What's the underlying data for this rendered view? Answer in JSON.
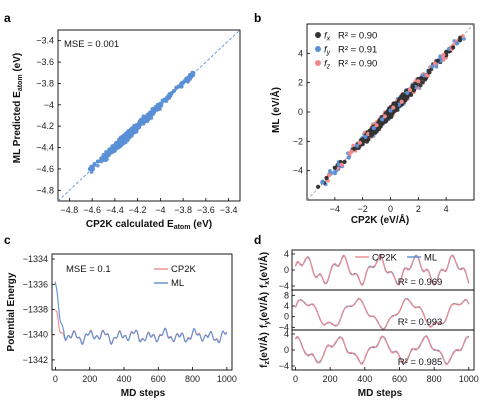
{
  "figure": {
    "panel_labels": [
      "a",
      "b",
      "c",
      "d"
    ]
  },
  "chart_data": [
    {
      "panel": "a",
      "type": "scatter",
      "xlabel_main": "CP2K calculated E",
      "xlabel_sub": "atom",
      "xlabel_unit": " (eV)",
      "ylabel_main": "ML Predicted E",
      "ylabel_sub": "atom",
      "ylabel_unit": " (eV)",
      "xlim": [
        -4.9,
        -3.3
      ],
      "ylim": [
        -4.9,
        -3.3
      ],
      "xticks": [
        -4.8,
        -4.6,
        -4.4,
        -4.2,
        -4.0,
        -3.8,
        -3.6,
        -3.4
      ],
      "yticks": [
        -4.8,
        -4.6,
        -4.4,
        -4.2,
        -4.0,
        -3.8,
        -3.6,
        -3.4
      ],
      "annotation": "MSE = 0.001",
      "reference_line": "y = x (dashed)",
      "series": [
        {
          "color": "#5b8fd6",
          "points": [
            [
              -4.62,
              -4.6
            ],
            [
              -4.58,
              -4.56
            ],
            [
              -4.55,
              -4.53
            ],
            [
              -4.52,
              -4.5
            ],
            [
              -4.5,
              -4.47
            ],
            [
              -4.48,
              -4.49
            ],
            [
              -4.46,
              -4.45
            ],
            [
              -4.45,
              -4.42
            ],
            [
              -4.43,
              -4.41
            ],
            [
              -4.42,
              -4.44
            ],
            [
              -4.41,
              -4.39
            ],
            [
              -4.4,
              -4.38
            ],
            [
              -4.39,
              -4.4
            ],
            [
              -4.38,
              -4.36
            ],
            [
              -4.37,
              -4.37
            ],
            [
              -4.36,
              -4.34
            ],
            [
              -4.35,
              -4.36
            ],
            [
              -4.34,
              -4.33
            ],
            [
              -4.33,
              -4.31
            ],
            [
              -4.32,
              -4.33
            ],
            [
              -4.31,
              -4.3
            ],
            [
              -4.3,
              -4.28
            ],
            [
              -4.29,
              -4.3
            ],
            [
              -4.28,
              -4.27
            ],
            [
              -4.27,
              -4.25
            ],
            [
              -4.26,
              -4.27
            ],
            [
              -4.25,
              -4.24
            ],
            [
              -4.24,
              -4.22
            ],
            [
              -4.23,
              -4.24
            ],
            [
              -4.22,
              -4.21
            ],
            [
              -4.21,
              -4.19
            ],
            [
              -4.2,
              -4.21
            ],
            [
              -4.19,
              -4.18
            ],
            [
              -4.18,
              -4.16
            ],
            [
              -4.17,
              -4.18
            ],
            [
              -4.16,
              -4.15
            ],
            [
              -4.15,
              -4.13
            ],
            [
              -4.14,
              -4.15
            ],
            [
              -4.12,
              -4.11
            ],
            [
              -4.1,
              -4.09
            ],
            [
              -4.08,
              -4.07
            ],
            [
              -4.06,
              -4.05
            ],
            [
              -4.04,
              -4.02
            ],
            [
              -4.02,
              -4.01
            ],
            [
              -4.0,
              -3.99
            ],
            [
              -3.98,
              -3.96
            ],
            [
              -3.96,
              -3.95
            ],
            [
              -3.94,
              -3.93
            ],
            [
              -3.92,
              -3.9
            ],
            [
              -3.9,
              -3.89
            ],
            [
              -3.88,
              -3.87
            ],
            [
              -3.86,
              -3.84
            ],
            [
              -3.84,
              -3.83
            ],
            [
              -3.82,
              -3.81
            ],
            [
              -3.8,
              -3.79
            ],
            [
              -3.78,
              -3.77
            ],
            [
              -3.76,
              -3.75
            ],
            [
              -3.74,
              -3.72
            ],
            [
              -3.72,
              -3.71
            ]
          ]
        }
      ]
    },
    {
      "panel": "b",
      "type": "scatter",
      "xlabel": "CP2K (eV/Å)",
      "ylabel": "ML (eV/Å)",
      "xlim": [
        -6,
        6
      ],
      "ylim": [
        -6,
        6
      ],
      "xticks": [
        -4,
        -2,
        0,
        2,
        4
      ],
      "yticks": [
        -4,
        -2,
        0,
        2,
        4
      ],
      "reference_line": "y = x (dashed)",
      "series": [
        {
          "legend_symbol": "f",
          "legend_sub": "x",
          "r2_text": "R² = 0.90",
          "color": "#333333",
          "points": [
            [
              -5.2,
              -5.1
            ],
            [
              -4.6,
              -4.5
            ],
            [
              -4.0,
              -3.8
            ],
            [
              -3.3,
              -3.4
            ],
            [
              -2.6,
              -2.5
            ],
            [
              -2.0,
              -1.9
            ],
            [
              -1.4,
              -1.5
            ],
            [
              -0.8,
              -0.7
            ],
            [
              -0.2,
              -0.1
            ],
            [
              0.4,
              0.5
            ],
            [
              1.0,
              0.9
            ],
            [
              1.6,
              1.7
            ],
            [
              2.2,
              2.3
            ],
            [
              2.8,
              2.7
            ],
            [
              3.4,
              3.5
            ],
            [
              4.0,
              4.1
            ],
            [
              4.5,
              4.4
            ],
            [
              5.0,
              4.9
            ]
          ]
        },
        {
          "legend_symbol": "f",
          "legend_sub": "y",
          "r2_text": "R² = 0.91",
          "color": "#5b8fd6",
          "points": [
            [
              -4.9,
              -4.8
            ],
            [
              -4.3,
              -4.2
            ],
            [
              -3.7,
              -3.6
            ],
            [
              -3.0,
              -3.1
            ],
            [
              -2.4,
              -2.3
            ],
            [
              -1.8,
              -1.7
            ],
            [
              -1.2,
              -1.1
            ],
            [
              -0.6,
              -0.5
            ],
            [
              0.0,
              0.1
            ],
            [
              0.6,
              0.5
            ],
            [
              1.2,
              1.3
            ],
            [
              1.8,
              1.7
            ],
            [
              2.4,
              2.5
            ],
            [
              3.0,
              3.1
            ],
            [
              3.6,
              3.5
            ],
            [
              4.2,
              4.3
            ],
            [
              4.8,
              4.7
            ]
          ]
        },
        {
          "legend_symbol": "f",
          "legend_sub": "z",
          "r2_text": "R² = 0.90",
          "color": "#f08a8a",
          "points": [
            [
              -4.4,
              -4.3
            ],
            [
              -3.5,
              -3.6
            ],
            [
              -2.8,
              -2.7
            ],
            [
              -2.2,
              -2.1
            ],
            [
              -1.6,
              -1.5
            ],
            [
              -1.0,
              -0.9
            ],
            [
              -0.4,
              -0.3
            ],
            [
              0.2,
              0.3
            ],
            [
              0.8,
              0.7
            ],
            [
              1.4,
              1.5
            ],
            [
              2.0,
              2.1
            ],
            [
              2.6,
              2.5
            ],
            [
              3.2,
              3.3
            ],
            [
              3.8,
              3.9
            ],
            [
              4.4,
              4.3
            ]
          ]
        }
      ]
    },
    {
      "panel": "c",
      "type": "line",
      "xlabel": "MD steps",
      "ylabel": "Potential Energy",
      "xlim": [
        -20,
        1030
      ],
      "ylim": [
        -1342.8,
        -1333.6
      ],
      "xticks": [
        0,
        200,
        400,
        600,
        800,
        1000
      ],
      "yticks": [
        -1334,
        -1336,
        -1338,
        -1340,
        -1342
      ],
      "annotation": "MSE = 0.1",
      "series": [
        {
          "name": "CP2K",
          "color": "#f08a8a"
        },
        {
          "name": "ML",
          "color": "#5b8fd6"
        }
      ]
    },
    {
      "panel": "d",
      "type": "line",
      "xlabel": "MD steps",
      "xlim": [
        -20,
        1030
      ],
      "xticks": [
        0,
        200,
        400,
        600,
        800,
        1000
      ],
      "legend": [
        {
          "name": "CP2K",
          "color": "#f08a8a"
        },
        {
          "name": "ML",
          "color": "#5b8fd6"
        }
      ],
      "subplots": [
        {
          "ylabel_sym": "f",
          "ylabel_sub": "x",
          "ylabel_unit": "(eV/Å)",
          "ylim": [
            -5,
            5
          ],
          "yticks": [
            4,
            0,
            -4
          ],
          "r2_text": "R² = 0.969"
        },
        {
          "ylabel_sym": "f",
          "ylabel_sub": "y",
          "ylabel_unit": "(eV/Å)",
          "ylim": [
            -5,
            10
          ],
          "yticks": [
            8,
            4,
            0,
            -4
          ],
          "r2_text": "R² = 0.993"
        },
        {
          "ylabel_sym": "f",
          "ylabel_sub": "z",
          "ylabel_unit": "(eV/Å)",
          "ylim": [
            -5,
            5
          ],
          "yticks": [
            4,
            0,
            -4
          ],
          "r2_text": "R² = 0.985"
        }
      ]
    }
  ]
}
